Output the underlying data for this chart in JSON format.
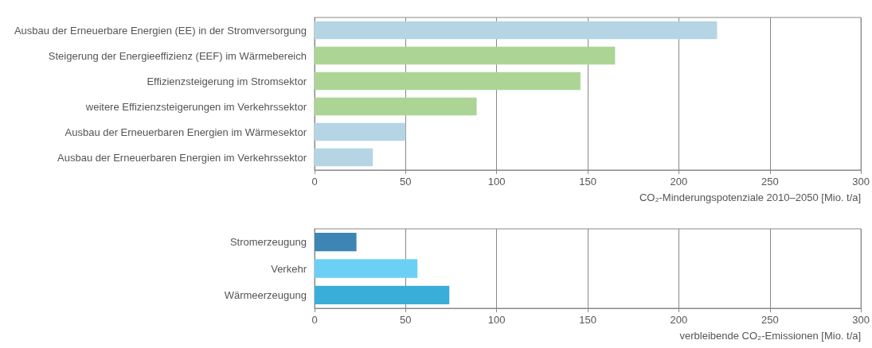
{
  "chart_data": [
    {
      "type": "bar",
      "orientation": "horizontal",
      "categories": [
        "Ausbau der Erneuerbare Energien (EE) in der Stromversorgung",
        "Steigerung der Energieeffizienz (EEF) im Wärmebereich",
        "Effizienzsteigerung im Stromsektor",
        "weitere Effizienzsteigerungen im Verkehrssektor",
        "Ausbau der Erneuerbaren Energien im Wärmesektor",
        "Ausbau der Erneuerbaren Energien im Verkehrssektor"
      ],
      "values": [
        221,
        165,
        146,
        89,
        50,
        32
      ],
      "colors": [
        "#b5d5e5",
        "#acd595",
        "#acd595",
        "#acd595",
        "#b5d5e5",
        "#b5d5e5"
      ],
      "xlim": [
        0,
        300
      ],
      "xticks": [
        0,
        50,
        100,
        150,
        200,
        250,
        300
      ],
      "grid": "x",
      "xlabel": "CO₂-Minderungspotenziale 2010–2050 [Mio. t/a]"
    },
    {
      "type": "bar",
      "orientation": "horizontal",
      "categories": [
        "Stromerzeugung",
        "Verkehr",
        "Wärmeerzeugung"
      ],
      "values": [
        23,
        56.5,
        74
      ],
      "colors": [
        "#3d85b5",
        "#6bd0f3",
        "#38aed8"
      ],
      "xlim": [
        0,
        300
      ],
      "xticks": [
        0,
        50,
        100,
        150,
        200,
        250,
        300
      ],
      "grid": "x",
      "xlabel": "verbleibende CO₂-Emissionen [Mio. t/a]"
    }
  ]
}
